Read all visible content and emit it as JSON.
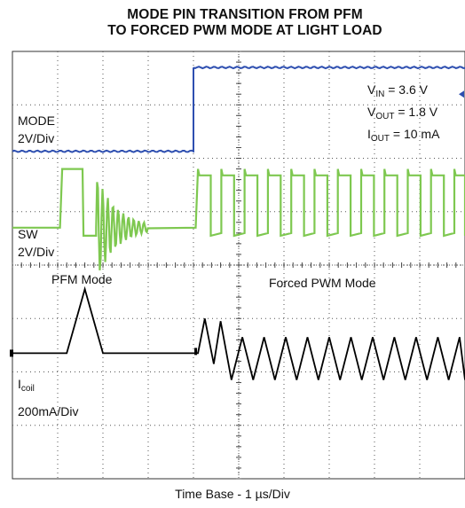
{
  "chart_data": {
    "type": "line",
    "title": "MODE PIN TRANSITION FROM PFM",
    "subtitle": "TO FORCED PWM MODE AT LIGHT LOAD",
    "xlabel": "Time Base - 1 µs/Div",
    "x_divisions": 10,
    "y_divisions": 8,
    "grid": true,
    "xlim": [
      0,
      10
    ],
    "ylim": [
      0,
      8
    ],
    "conditions": {
      "vin": {
        "prefix": "V",
        "sub": "IN",
        "value": "= 3.6 V"
      },
      "vout": {
        "prefix": "V",
        "sub": "OUT",
        "value": "= 1.8 V"
      },
      "iout": {
        "prefix": "I",
        "sub": "OUT",
        "value": "= 10 mA"
      }
    },
    "annotations": {
      "pfm": "PFM Mode",
      "pwm": "Forced PWM Mode"
    },
    "series": [
      {
        "name": "MODE",
        "scale": "2V/Div",
        "color": "#2e4fb0",
        "description": "logic step low to high",
        "points": [
          [
            0,
            6.13
          ],
          [
            4.0,
            6.13
          ],
          [
            4.0,
            7.7
          ],
          [
            10,
            7.7
          ]
        ]
      },
      {
        "name": "SW",
        "scale": "2V/Div",
        "color": "#7ec850",
        "pfm_burst": {
          "start": 1.1,
          "end": 1.55,
          "high": 5.8,
          "low": 4.55,
          "ring_until": 3.0,
          "base": 4.7
        },
        "pwm": {
          "start": 4.1,
          "period": 0.515,
          "duty": 0.55,
          "high": 5.8,
          "low": 4.55
        }
      },
      {
        "name": "coil",
        "label_prefix": "I",
        "label_sub": "coil",
        "scale": "200mA/Div",
        "color": "#000000",
        "pfm_pulse": {
          "start": 1.2,
          "peak_time": 1.6,
          "end": 2.0,
          "peak": 3.55,
          "base": 2.35
        },
        "pwm": {
          "start": 4.1,
          "period": 0.24,
          "high": 2.65,
          "low": 1.85,
          "initial_peak": 3.0
        }
      }
    ],
    "channel_labels": {
      "mode": [
        "MODE",
        "2V/Div"
      ],
      "sw": [
        "SW",
        "2V/Div"
      ],
      "coil": [
        "I",
        "coil",
        "200mA/Div"
      ]
    }
  }
}
